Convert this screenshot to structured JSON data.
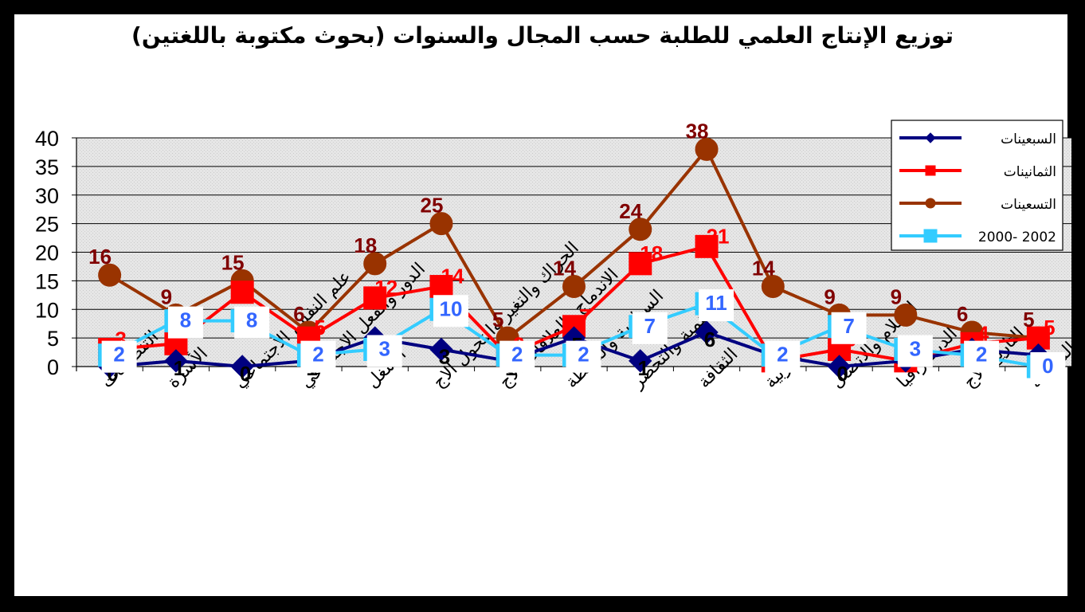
{
  "chart_data": {
    "type": "line",
    "title": "توزيع الإنتاج العلمي للطلبة حسب المجال والسنوات (بحوث مكتوبة باللغتين)",
    "xlabel": "",
    "ylabel": "",
    "ylim": [
      0,
      40
    ],
    "yticks": [
      0,
      5,
      10,
      15,
      20,
      25,
      30,
      35,
      40
    ],
    "grid": true,
    "legend_position": "top-right",
    "categories": [
      "التنظيمات",
      "الأسرة",
      "علم النفس الاجتماعي",
      "الدور والفعل الاجتماعي",
      "الشغل",
      "الحراك والتغير والتحول الاج",
      "الاندماج والعلاقات الاج",
      "السياسة والسلطة",
      "التنمية والتحضر",
      "الثقافة",
      "التربية",
      "الإعلام والاتصال",
      "الديمغرافيا",
      "التاريخ الاج",
      "علم اجتماع المعرفة"
    ],
    "series": [
      {
        "name": "السبعينات",
        "color": "#000080",
        "marker": "diamond",
        "values": [
          0,
          1,
          0,
          1,
          5,
          3,
          1,
          5,
          1,
          6,
          2,
          0,
          1,
          3,
          2
        ],
        "labels": [
          "0",
          "1",
          "0",
          "1",
          "5",
          "3",
          "1",
          "5",
          "1",
          "6",
          "",
          "0",
          "",
          "3",
          "2"
        ]
      },
      {
        "name": "الثمانينات",
        "color": "#ff0000",
        "marker": "square",
        "values": [
          3,
          4,
          13,
          5,
          12,
          14,
          2,
          7,
          18,
          21,
          1,
          3,
          1,
          4,
          5
        ],
        "labels": [
          "3",
          "",
          "",
          "5",
          "12",
          "14",
          "2",
          "7",
          "18",
          "21",
          "1",
          "3",
          "1",
          "4",
          "5"
        ]
      },
      {
        "name": "التسعينات",
        "color": "#993300",
        "marker": "circle",
        "values": [
          16,
          9,
          15,
          6,
          18,
          25,
          5,
          14,
          24,
          38,
          14,
          9,
          9,
          6,
          5
        ],
        "labels": [
          "16",
          "9",
          "15",
          "6",
          "18",
          "25",
          "5",
          "14",
          "24",
          "38",
          "14",
          "9",
          "9",
          "6",
          "5"
        ]
      },
      {
        "name": "2000- 2002",
        "color": "#33ccff",
        "marker": "square",
        "values": [
          2,
          8,
          8,
          2,
          3,
          10,
          2,
          2,
          7,
          11,
          2,
          7,
          3,
          2,
          0
        ],
        "labels": [
          "2",
          "8",
          "8",
          "2",
          "3",
          "10",
          "2",
          "2",
          "7",
          "11",
          "2",
          "7",
          "3",
          "2",
          "0"
        ]
      }
    ]
  }
}
